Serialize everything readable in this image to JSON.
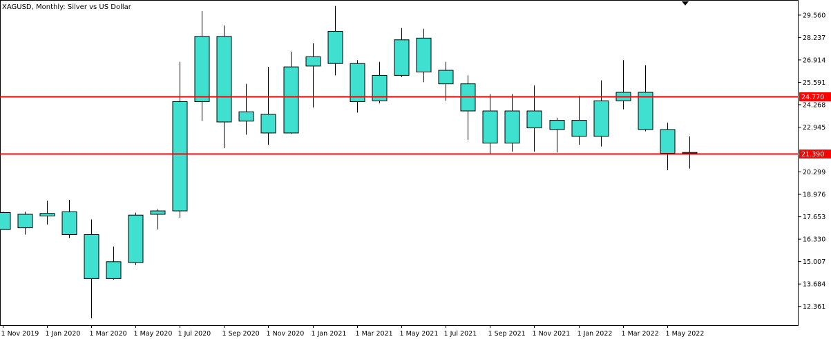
{
  "header": {
    "title": "XAGUSD, Monthly:  Silver vs US Dollar"
  },
  "chart_data": {
    "type": "candlestick",
    "title": "XAGUSD, Monthly:  Silver vs US Dollar",
    "xlabel": "",
    "ylabel": "",
    "ylim": [
      11.25,
      30.45
    ],
    "grid": false,
    "colors": {
      "bull": "#40E0D0",
      "bear": "#40E0D0",
      "border": "#000000",
      "hline": "#FF0000",
      "tag_bg": "#FF0000"
    },
    "y_ticks": [
      "29.560",
      "28.237",
      "26.914",
      "25.591",
      "24.268",
      "22.945",
      "20.299",
      "18.976",
      "17.653",
      "16.330",
      "15.007",
      "13.684",
      "12.361"
    ],
    "x_ticks": [
      "1 Nov 2019",
      "1 Jan 2020",
      "1 Mar 2020",
      "1 May 2020",
      "1 Jul 2020",
      "1 Sep 2020",
      "1 Nov 2020",
      "1 Jan 2021",
      "1 Mar 2021",
      "1 May 2021",
      "1 Jul 2021",
      "1 Sep 2021",
      "1 Nov 2021",
      "1 Jan 2022",
      "1 Mar 2022",
      "1 May 2022"
    ],
    "candles": [
      {
        "date": "1 Nov 2019",
        "open": 17.9,
        "high": 17.95,
        "low": 16.9,
        "close": 16.9
      },
      {
        "date": "1 Dec 2019",
        "open": 17.0,
        "high": 17.95,
        "low": 16.6,
        "close": 17.8
      },
      {
        "date": "1 Jan 2020",
        "open": 17.7,
        "high": 18.6,
        "low": 17.2,
        "close": 17.85
      },
      {
        "date": "1 Feb 2020",
        "open": 17.95,
        "high": 18.65,
        "low": 16.4,
        "close": 16.6
      },
      {
        "date": "1 Mar 2020",
        "open": 16.6,
        "high": 17.5,
        "low": 11.65,
        "close": 14.0
      },
      {
        "date": "1 Apr 2020",
        "open": 14.0,
        "high": 15.9,
        "low": 13.95,
        "close": 15.0
      },
      {
        "date": "1 May 2020",
        "open": 14.95,
        "high": 17.9,
        "low": 14.8,
        "close": 17.75
      },
      {
        "date": "1 Jun 2020",
        "open": 17.8,
        "high": 18.1,
        "low": 16.9,
        "close": 18.0
      },
      {
        "date": "1 Jul 2020",
        "open": 18.0,
        "high": 26.8,
        "low": 17.6,
        "close": 24.45
      },
      {
        "date": "1 Aug 2020",
        "open": 24.45,
        "high": 29.8,
        "low": 23.3,
        "close": 28.3
      },
      {
        "date": "1 Sep 2020",
        "open": 28.3,
        "high": 28.95,
        "low": 21.7,
        "close": 23.25
      },
      {
        "date": "1 Oct 2020",
        "open": 23.3,
        "high": 25.5,
        "low": 22.5,
        "close": 23.85
      },
      {
        "date": "1 Nov 2020",
        "open": 23.7,
        "high": 26.5,
        "low": 21.9,
        "close": 22.6
      },
      {
        "date": "1 Dec 2020",
        "open": 22.6,
        "high": 27.4,
        "low": 22.55,
        "close": 26.5
      },
      {
        "date": "1 Jan 2021",
        "open": 26.55,
        "high": 27.9,
        "low": 24.1,
        "close": 27.1
      },
      {
        "date": "1 Feb 2021",
        "open": 26.7,
        "high": 30.1,
        "low": 26.0,
        "close": 28.6
      },
      {
        "date": "1 Mar 2021",
        "open": 26.7,
        "high": 26.9,
        "low": 23.8,
        "close": 24.45
      },
      {
        "date": "1 Apr 2021",
        "open": 24.5,
        "high": 26.8,
        "low": 24.35,
        "close": 26.0
      },
      {
        "date": "1 May 2021",
        "open": 26.0,
        "high": 28.8,
        "low": 25.9,
        "close": 28.1
      },
      {
        "date": "1 Jun 2021",
        "open": 28.2,
        "high": 28.75,
        "low": 25.6,
        "close": 26.2
      },
      {
        "date": "1 Jul 2021",
        "open": 26.3,
        "high": 26.8,
        "low": 24.5,
        "close": 25.5
      },
      {
        "date": "1 Aug 2021",
        "open": 25.5,
        "high": 26.0,
        "low": 22.2,
        "close": 23.9
      },
      {
        "date": "1 Sep 2021",
        "open": 23.9,
        "high": 24.9,
        "low": 21.4,
        "close": 22.0
      },
      {
        "date": "1 Oct 2021",
        "open": 22.0,
        "high": 24.9,
        "low": 21.5,
        "close": 23.9
      },
      {
        "date": "1 Nov 2021",
        "open": 23.9,
        "high": 25.4,
        "low": 21.5,
        "close": 22.9
      },
      {
        "date": "1 Dec 2021",
        "open": 22.8,
        "high": 23.5,
        "low": 21.45,
        "close": 23.35
      },
      {
        "date": "1 Jan 2022",
        "open": 23.35,
        "high": 24.8,
        "low": 21.9,
        "close": 22.4
      },
      {
        "date": "1 Feb 2022",
        "open": 22.4,
        "high": 25.7,
        "low": 21.8,
        "close": 24.5
      },
      {
        "date": "1 Mar 2022",
        "open": 24.5,
        "high": 26.9,
        "low": 24.0,
        "close": 25.0
      },
      {
        "date": "1 Apr 2022",
        "open": 25.0,
        "high": 26.6,
        "low": 22.7,
        "close": 22.8
      },
      {
        "date": "1 May 2022",
        "open": 22.8,
        "high": 23.2,
        "low": 20.4,
        "close": 21.4
      },
      {
        "date": "1 Jun 2022",
        "open": 21.4,
        "high": 22.4,
        "low": 20.5,
        "close": 21.45
      }
    ],
    "hlines": [
      {
        "value": 24.77,
        "label": "24.770"
      },
      {
        "value": 21.39,
        "label": "21.390"
      }
    ]
  }
}
